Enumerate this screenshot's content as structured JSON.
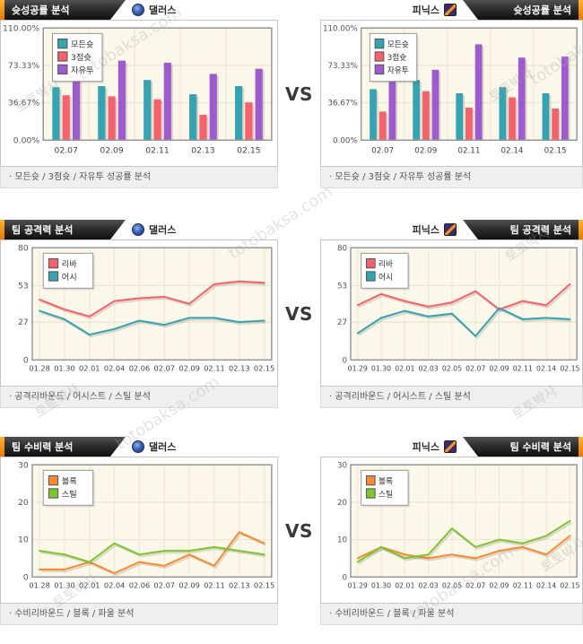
{
  "page": {
    "vs_label": "VS"
  },
  "watermark": {
    "korean": "토토박사",
    "domain": "totobaksa.com"
  },
  "teams": {
    "left": "댈러스",
    "right": "피닉스"
  },
  "sections": [
    {
      "title": "슛성공률 분석",
      "footer": "· 모든슛 / 3점슛 / 자유투 성공률 분석"
    },
    {
      "title": "팀 공격력 분석",
      "footer": "· 공격리바운드 / 어시스트 / 스틸 분석"
    },
    {
      "title": "팀 수비력 분석",
      "footer": "· 수비리바운드 / 블록 / 파울 분석"
    }
  ],
  "chart_data": [
    {
      "name": "dallas-shot-success",
      "type": "bar",
      "title": "슛성공률 분석 - 댈러스",
      "categories": [
        "02.07",
        "02.09",
        "02.11",
        "02.13",
        "02.15"
      ],
      "series": [
        {
          "name": "모든슛",
          "color": "#35A3B2",
          "values": [
            52,
            53,
            59,
            45,
            53
          ]
        },
        {
          "name": "3점슛",
          "color": "#F5626C",
          "values": [
            44,
            43,
            40,
            25,
            37
          ]
        },
        {
          "name": "자유투",
          "color": "#9D5BCE",
          "values": [
            59,
            78,
            76,
            65,
            70
          ]
        }
      ],
      "ylim": [
        0,
        110
      ],
      "yticks": [
        {
          "v": 110,
          "label": "110.00%"
        },
        {
          "v": 73.33,
          "label": "73.33%"
        },
        {
          "v": 36.67,
          "label": "36.67%"
        },
        {
          "v": 0,
          "label": "0.00%"
        }
      ],
      "grid": true,
      "legend_position": "upper-left"
    },
    {
      "name": "phoenix-shot-success",
      "type": "bar",
      "title": "슛성공률 분석 - 피닉스",
      "categories": [
        "02.07",
        "02.09",
        "02.11",
        "02.14",
        "02.15"
      ],
      "series": [
        {
          "name": "모든슛",
          "color": "#35A3B2",
          "values": [
            50,
            59,
            46,
            52,
            46
          ]
        },
        {
          "name": "3점슛",
          "color": "#F5626C",
          "values": [
            28,
            48,
            32,
            42,
            31
          ]
        },
        {
          "name": "자유투",
          "color": "#9D5BCE",
          "values": [
            58,
            69,
            94,
            81,
            82
          ]
        }
      ],
      "ylim": [
        0,
        110
      ],
      "yticks": [
        {
          "v": 110,
          "label": "110.00%"
        },
        {
          "v": 73.33,
          "label": "73.33%"
        },
        {
          "v": 36.67,
          "label": "36.67%"
        },
        {
          "v": 0,
          "label": "0.00%"
        }
      ],
      "grid": true,
      "legend_position": "upper-left"
    },
    {
      "name": "dallas-offense",
      "type": "line",
      "title": "팀 공격력 분석 - 댈러스",
      "categories": [
        "01.28",
        "01.30",
        "02.01",
        "02.04",
        "02.06",
        "02.07",
        "02.09",
        "02.11",
        "02.13",
        "02.15"
      ],
      "series": [
        {
          "name": "리바",
          "color": "#F5626C",
          "values": [
            43,
            36,
            31,
            42,
            44,
            45,
            40,
            54,
            56,
            55
          ]
        },
        {
          "name": "어시",
          "color": "#35A3B2",
          "values": [
            35,
            29,
            18,
            22,
            28,
            25,
            30,
            30,
            27,
            28
          ]
        }
      ],
      "ylim": [
        0,
        80
      ],
      "yticks": [
        {
          "v": 80,
          "label": "80"
        },
        {
          "v": 53,
          "label": "53"
        },
        {
          "v": 27,
          "label": "27"
        },
        {
          "v": 0,
          "label": "0"
        }
      ],
      "grid": true,
      "legend_position": "upper-left"
    },
    {
      "name": "phoenix-offense",
      "type": "line",
      "title": "팀 공격력 분석 - 피닉스",
      "categories": [
        "01.29",
        "01.30",
        "02.01",
        "02.03",
        "02.05",
        "02.07",
        "02.09",
        "02.11",
        "02.14",
        "02.15"
      ],
      "series": [
        {
          "name": "리바",
          "color": "#F5626C",
          "values": [
            39,
            47,
            42,
            38,
            41,
            49,
            36,
            42,
            39,
            54
          ]
        },
        {
          "name": "어시",
          "color": "#35A3B2",
          "values": [
            19,
            30,
            35,
            31,
            33,
            17,
            37,
            29,
            30,
            29
          ]
        }
      ],
      "ylim": [
        0,
        80
      ],
      "yticks": [
        {
          "v": 80,
          "label": "80"
        },
        {
          "v": 53,
          "label": "53"
        },
        {
          "v": 27,
          "label": "27"
        },
        {
          "v": 0,
          "label": "0"
        }
      ],
      "grid": true,
      "legend_position": "upper-left"
    },
    {
      "name": "dallas-defense",
      "type": "line",
      "title": "팀 수비력 분석 - 댈러스",
      "categories": [
        "01.28",
        "01.30",
        "02.01",
        "02.04",
        "02.06",
        "02.07",
        "02.09",
        "02.11",
        "02.13",
        "02.15"
      ],
      "series": [
        {
          "name": "블록",
          "color": "#F68B33",
          "values": [
            2,
            2,
            4,
            1,
            4,
            3,
            6,
            3,
            12,
            9
          ]
        },
        {
          "name": "스틸",
          "color": "#7CC52F",
          "values": [
            7,
            6,
            4,
            9,
            6,
            7,
            7,
            8,
            7,
            6
          ]
        }
      ],
      "ylim": [
        0,
        30
      ],
      "yticks": [
        {
          "v": 30,
          "label": "30"
        },
        {
          "v": 20,
          "label": "20"
        },
        {
          "v": 10,
          "label": "10"
        },
        {
          "v": 0,
          "label": "0"
        }
      ],
      "grid": true,
      "legend_position": "upper-left"
    },
    {
      "name": "phoenix-defense",
      "type": "line",
      "title": "팀 수비력 분석 - 피닉스",
      "categories": [
        "01.29",
        "01.30",
        "02.01",
        "02.03",
        "02.05",
        "02.07",
        "02.09",
        "02.11",
        "02.14",
        "02.15"
      ],
      "series": [
        {
          "name": "블록",
          "color": "#F68B33",
          "values": [
            5,
            8,
            6,
            5,
            6,
            5,
            7,
            8,
            6,
            11
          ]
        },
        {
          "name": "스틸",
          "color": "#7CC52F",
          "values": [
            4,
            8,
            5,
            6,
            13,
            8,
            10,
            9,
            11,
            15
          ]
        }
      ],
      "ylim": [
        0,
        30
      ],
      "yticks": [
        {
          "v": 30,
          "label": "30"
        },
        {
          "v": 20,
          "label": "20"
        },
        {
          "v": 10,
          "label": "10"
        },
        {
          "v": 0,
          "label": "0"
        }
      ],
      "grid": true,
      "legend_position": "upper-left"
    }
  ]
}
